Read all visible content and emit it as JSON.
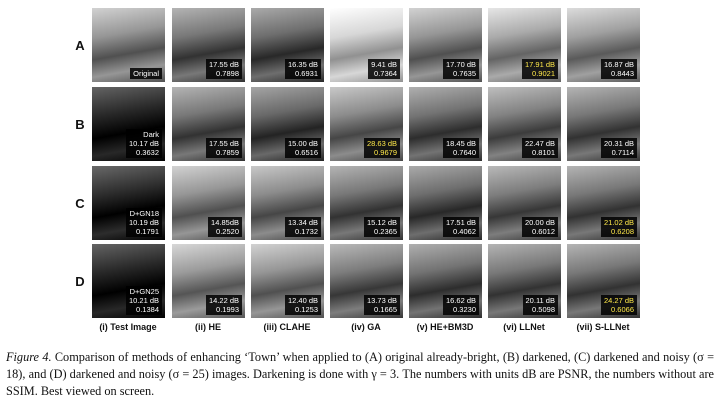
{
  "rows": [
    {
      "label": "A",
      "cells": [
        {
          "lines": [
            "Original"
          ]
        },
        {
          "lines": [
            "17.55 dB",
            "0.7898"
          ]
        },
        {
          "lines": [
            "16.35 dB",
            "0.6931"
          ]
        },
        {
          "lines": [
            "9.41 dB",
            "0.7364"
          ]
        },
        {
          "lines": [
            "17.70 dB",
            "0.7635"
          ]
        },
        {
          "lines": [
            "17.91 dB",
            "0.9021"
          ],
          "highlight": true
        },
        {
          "lines": [
            "16.87 dB",
            "0.8443"
          ]
        }
      ]
    },
    {
      "label": "B",
      "cells": [
        {
          "lines": [
            "Dark",
            "10.17 dB",
            "0.3632"
          ]
        },
        {
          "lines": [
            "17.55 dB",
            "0.7859"
          ]
        },
        {
          "lines": [
            "15.00 dB",
            "0.6516"
          ]
        },
        {
          "lines": [
            "28.63 dB",
            "0.9679"
          ],
          "highlight": true
        },
        {
          "lines": [
            "18.45 dB",
            "0.7640"
          ]
        },
        {
          "lines": [
            "22.47 dB",
            "0.8101"
          ]
        },
        {
          "lines": [
            "20.31 dB",
            "0.7114"
          ]
        }
      ]
    },
    {
      "label": "C",
      "cells": [
        {
          "lines": [
            "D+GN18",
            "10.19 dB",
            "0.1791"
          ]
        },
        {
          "lines": [
            "14.85dB",
            "0.2520"
          ]
        },
        {
          "lines": [
            "13.34 dB",
            "0.1732"
          ]
        },
        {
          "lines": [
            "15.12 dB",
            "0.2365"
          ]
        },
        {
          "lines": [
            "17.51 dB",
            "0.4062"
          ]
        },
        {
          "lines": [
            "20.00 dB",
            "0.6012"
          ]
        },
        {
          "lines": [
            "21.02 dB",
            "0.6208"
          ],
          "highlight": true
        }
      ]
    },
    {
      "label": "D",
      "cells": [
        {
          "lines": [
            "D+GN25",
            "10.21 dB",
            "0.1384"
          ]
        },
        {
          "lines": [
            "14.22 dB",
            "0.1993"
          ]
        },
        {
          "lines": [
            "12.40 dB",
            "0.1253"
          ]
        },
        {
          "lines": [
            "13.73 dB",
            "0.1665"
          ]
        },
        {
          "lines": [
            "16.62 dB",
            "0.3230"
          ]
        },
        {
          "lines": [
            "20.11 dB",
            "0.5098"
          ]
        },
        {
          "lines": [
            "24.27 dB",
            "0.6066"
          ],
          "highlight": true
        }
      ]
    }
  ],
  "columns": [
    "(i) Test Image",
    "(ii) HE",
    "(iii) CLAHE",
    "(iv) GA",
    "(v) HE+BM3D",
    "(vi) LLNet",
    "(vii) S-LLNet"
  ],
  "caption": {
    "label": "Figure 4.",
    "text": "Comparison of methods of enhancing ‘Town’ when applied to (A) original already-bright, (B) darkened, (C) darkened and noisy (σ = 18), and (D) darkened and noisy (σ = 25) images. Darkening is done with γ = 3. The numbers with units dB are PSNR, the numbers without are SSIM. Best viewed on screen."
  }
}
